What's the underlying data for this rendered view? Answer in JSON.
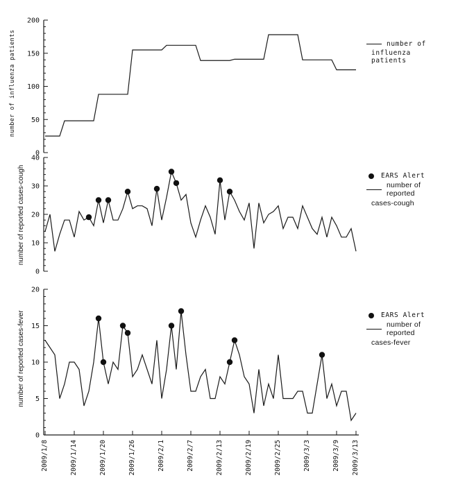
{
  "figure": {
    "background": "#ffffff",
    "line_color": "#1a1a1a",
    "alert_color": "#111111"
  },
  "x_axis": {
    "tick_labels": [
      "2009/1/8",
      "2009/1/14",
      "2009/1/20",
      "2009/1/26",
      "2009/2/1",
      "2009/2/7",
      "2009/2/13",
      "2009/2/19",
      "2009/2/25",
      "2009/3/3",
      "2009/3/9",
      "2009/3/13"
    ],
    "tick_days": [
      0,
      6,
      12,
      18,
      24,
      30,
      36,
      42,
      48,
      54,
      60,
      64
    ],
    "start_date": "2009/1/8",
    "step_days": 1
  },
  "chart_data": [
    {
      "id": "influenza",
      "type": "line",
      "ylabel": "number of influenza patients",
      "ylim": [
        0,
        200
      ],
      "y_ticks": [
        0,
        50,
        100,
        150,
        200
      ],
      "y_minor_step": 10,
      "grid": false,
      "legend": {
        "position": "right",
        "lines": [
          "number of",
          "influenza patients"
        ]
      },
      "step_points": [
        [
          0,
          25
        ],
        [
          3,
          25
        ],
        [
          4,
          48
        ],
        [
          10,
          48
        ],
        [
          11,
          88
        ],
        [
          17,
          88
        ],
        [
          18,
          155
        ],
        [
          24,
          155
        ],
        [
          25,
          162
        ],
        [
          31,
          162
        ],
        [
          32,
          139
        ],
        [
          38,
          139
        ],
        [
          39,
          141
        ],
        [
          45,
          141
        ],
        [
          46,
          178
        ],
        [
          52,
          178
        ],
        [
          53,
          140
        ],
        [
          59,
          140
        ],
        [
          60,
          125
        ],
        [
          64,
          125
        ]
      ]
    },
    {
      "id": "cough",
      "type": "line",
      "ylabel": "number of reported cases-cough",
      "ylim": [
        0,
        40
      ],
      "y_ticks": [
        0,
        10,
        20,
        30,
        40
      ],
      "y_minor_step": 2,
      "grid": false,
      "legend": {
        "position": "right",
        "alert_label": "EARS Alert",
        "lines": [
          "number of reported",
          "cases-cough"
        ]
      },
      "values": [
        14,
        20,
        7,
        13,
        18,
        18,
        12,
        21,
        18,
        19,
        16,
        25,
        17,
        25,
        18,
        18,
        22,
        28,
        22,
        23,
        23,
        22,
        16,
        29,
        18,
        26,
        35,
        31,
        25,
        27,
        17,
        12,
        18,
        23,
        19,
        13,
        32,
        18,
        28,
        25,
        21,
        18,
        24,
        8,
        24,
        17,
        20,
        21,
        23,
        15,
        19,
        19,
        15,
        23,
        19,
        15,
        13,
        19,
        12,
        19,
        16,
        12,
        12,
        15,
        7
      ],
      "alert_days": [
        9,
        11,
        13,
        17,
        23,
        26,
        27,
        36,
        38
      ]
    },
    {
      "id": "fever",
      "type": "line",
      "ylabel": "number of reported cases-fever",
      "ylim": [
        0,
        20
      ],
      "y_ticks": [
        0,
        5,
        10,
        15,
        20
      ],
      "y_minor_step": 1,
      "grid": false,
      "legend": {
        "position": "right",
        "alert_label": "EARS Alert",
        "lines": [
          "number of reported",
          "cases-fever"
        ]
      },
      "values": [
        13,
        12,
        11,
        5,
        7,
        10,
        10,
        9,
        4,
        6,
        10,
        16,
        10,
        7,
        10,
        9,
        15,
        14,
        8,
        9,
        11,
        9,
        7,
        13,
        5,
        9,
        15,
        9,
        17,
        11,
        6,
        6,
        8,
        9,
        5,
        5,
        8,
        7,
        10,
        13,
        11,
        8,
        7,
        3,
        9,
        4,
        7,
        5,
        11,
        5,
        5,
        5,
        6,
        6,
        3,
        3,
        7,
        11,
        5,
        7,
        4,
        6,
        6,
        2,
        3
      ],
      "alert_days": [
        11,
        12,
        16,
        17,
        26,
        28,
        38,
        39,
        57
      ]
    }
  ]
}
